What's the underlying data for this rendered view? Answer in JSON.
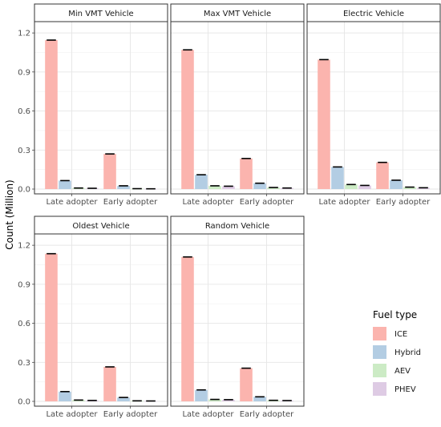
{
  "chart_data": {
    "type": "bar",
    "ylabel": "Count (Million)",
    "yticks": [
      0.0,
      0.3,
      0.6,
      0.9,
      1.2
    ],
    "ylim": [
      0,
      1.25
    ],
    "grid": true,
    "categories": [
      "Late adopter",
      "Early adopter"
    ],
    "series_names": [
      "ICE",
      "Hybrid",
      "AEV",
      "PHEV"
    ],
    "colors": {
      "ICE": "#fbb4ae",
      "Hybrid": "#b3cde3",
      "AEV": "#ccebc5",
      "PHEV": "#decbe4"
    },
    "legend": {
      "title": "Fuel type",
      "placement": "right"
    },
    "facets": [
      {
        "title": "Min VMT Vehicle",
        "values": {
          "Late adopter": [
            1.145,
            0.065,
            0.008,
            0.006
          ],
          "Early adopter": [
            0.27,
            0.025,
            0.003,
            0.002
          ]
        }
      },
      {
        "title": "Max VMT Vehicle",
        "values": {
          "Late adopter": [
            1.07,
            0.11,
            0.025,
            0.022
          ],
          "Early adopter": [
            0.235,
            0.045,
            0.012,
            0.008
          ]
        }
      },
      {
        "title": "Electric Vehicle",
        "values": {
          "Late adopter": [
            0.995,
            0.17,
            0.035,
            0.028
          ],
          "Early adopter": [
            0.205,
            0.068,
            0.015,
            0.01
          ]
        }
      },
      {
        "title": "Oldest Vehicle",
        "values": {
          "Late adopter": [
            1.135,
            0.075,
            0.01,
            0.007
          ],
          "Early adopter": [
            0.265,
            0.03,
            0.004,
            0.003
          ]
        }
      },
      {
        "title": "Random Vehicle",
        "values": {
          "Late adopter": [
            1.11,
            0.088,
            0.015,
            0.013
          ],
          "Early adopter": [
            0.255,
            0.035,
            0.008,
            0.006
          ]
        }
      }
    ]
  }
}
